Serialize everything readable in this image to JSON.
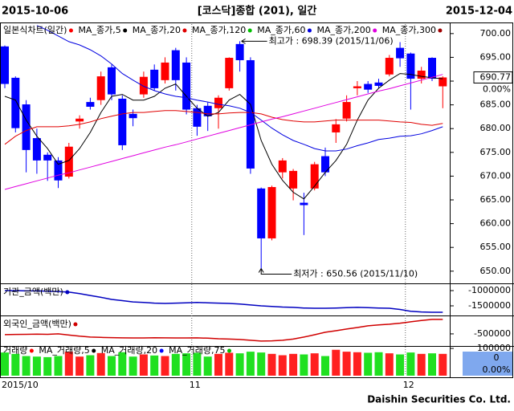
{
  "header": {
    "start": "2015-10-06",
    "title": "[코스닥]종합 (201), 일간",
    "end": "2015-12-04"
  },
  "footer": "Daishin Securities Co. Ltd.",
  "chart_data": [
    {
      "type": "candlestick",
      "name": "일본식차트(일간)",
      "up_color": "#ff0000",
      "down_color": "#0000ff",
      "categories": [
        "2015/10",
        null,
        null,
        null,
        null,
        null,
        null,
        null,
        null,
        null,
        null,
        null,
        null,
        null,
        null,
        null,
        null,
        null,
        "11",
        null,
        null,
        null,
        null,
        null,
        null,
        null,
        null,
        null,
        null,
        null,
        null,
        null,
        null,
        null,
        null,
        null,
        null,
        null,
        "12",
        null,
        null,
        null
      ],
      "open": [
        697.3,
        690.7,
        685.1,
        678.0,
        674.5,
        673.3,
        669.9,
        681.5,
        685.6,
        686.0,
        692.9,
        686.3,
        683.1,
        687.2,
        692.4,
        690.2,
        696.5,
        693.9,
        684.3,
        684.8,
        684.3,
        688.5,
        697.8,
        694.4,
        667.4,
        656.9,
        670.8,
        667.4,
        664.4,
        667.4,
        674.2,
        679.2,
        682.1,
        688.5,
        689.4,
        689.7,
        691.4,
        697.0,
        695.8,
        690.5,
        694.9,
        688.9
      ],
      "high": [
        697.5,
        691.0,
        686.0,
        680.0,
        675.0,
        674.0,
        677.0,
        682.8,
        686.5,
        692.0,
        693.5,
        687.0,
        684.0,
        692.0,
        693.5,
        695.0,
        697.0,
        695.0,
        685.0,
        685.5,
        687.0,
        695.0,
        698.39,
        695.0,
        667.6,
        668.0,
        673.8,
        671.5,
        666.5,
        673.0,
        676.0,
        682.0,
        687.0,
        690.0,
        690.0,
        690.5,
        695.5,
        698.2,
        696.0,
        693.0,
        695.0,
        691.0
      ],
      "low": [
        688.5,
        679.2,
        670.8,
        670.5,
        669.0,
        667.5,
        669.5,
        680.0,
        684.0,
        685.0,
        686.0,
        675.5,
        680.5,
        686.5,
        688.0,
        689.5,
        688.0,
        683.0,
        678.5,
        679.5,
        680.0,
        688.0,
        692.0,
        670.5,
        650.56,
        656.5,
        669.5,
        664.9,
        657.6,
        667.0,
        670.0,
        677.0,
        681.5,
        687.0,
        687.5,
        688.5,
        691.0,
        693.0,
        684.0,
        689.5,
        690.0,
        684.3
      ],
      "close": [
        689.4,
        680.1,
        675.5,
        673.3,
        673.3,
        669.1,
        676.2,
        682.1,
        684.6,
        691.0,
        687.2,
        676.5,
        682.2,
        690.9,
        688.5,
        693.9,
        690.2,
        684.0,
        680.4,
        682.6,
        686.5,
        694.9,
        694.4,
        671.6,
        656.9,
        667.7,
        673.3,
        671.1,
        663.9,
        672.5,
        670.8,
        680.9,
        685.6,
        688.9,
        688.2,
        689.0,
        694.9,
        694.8,
        690.5,
        692.2,
        690.5,
        690.77
      ],
      "series": [
        {
          "name": "MA_종가,5",
          "color": "#000000",
          "values": [
            686.8,
            686.0,
            681.8,
            678.4,
            675.8,
            672.5,
            673.3,
            675.8,
            679.2,
            683.4,
            686.8,
            687.2,
            686.0,
            686.0,
            686.8,
            688.5,
            689.4,
            686.8,
            684.3,
            682.6,
            683.4,
            686.0,
            687.2,
            685.1,
            677.5,
            672.5,
            669.1,
            666.6,
            665.2,
            667.9,
            670.8,
            673.3,
            676.7,
            681.8,
            686.0,
            688.5,
            690.2,
            691.6,
            691.4,
            691.0,
            690.7,
            690.5
          ]
        },
        {
          "name": "MA_종가,20",
          "color": "#e00000",
          "values": [
            676.7,
            678.4,
            679.6,
            680.4,
            680.4,
            680.4,
            680.6,
            680.9,
            681.4,
            682.1,
            682.6,
            683.1,
            683.4,
            683.4,
            683.6,
            683.8,
            683.8,
            683.6,
            683.4,
            683.1,
            683.1,
            683.3,
            683.4,
            683.4,
            683.1,
            682.4,
            681.9,
            681.6,
            681.4,
            681.4,
            681.6,
            681.8,
            681.8,
            681.8,
            681.8,
            681.8,
            681.6,
            681.4,
            681.3,
            680.9,
            680.7,
            681.1
          ]
        },
        {
          "name": "MA_종가,120",
          "color": "#00c000",
          "values": [
            null,
            null,
            null,
            null,
            null,
            null,
            null,
            null,
            null,
            null,
            null,
            null,
            null,
            null,
            null,
            null,
            null,
            null,
            null,
            null,
            null,
            null,
            null,
            null,
            null,
            null,
            null,
            null,
            null,
            null,
            null,
            null,
            null,
            null,
            null,
            null,
            null,
            null,
            null,
            null,
            null,
            null
          ]
        },
        {
          "name": "MA_종가,60",
          "color": "#0000e0",
          "values": [
            null,
            null,
            null,
            701.7,
            700.7,
            699.5,
            698.3,
            697.6,
            696.6,
            695.3,
            693.6,
            691.6,
            690.2,
            688.9,
            688.0,
            687.3,
            686.8,
            686.5,
            686.0,
            685.6,
            685.1,
            684.8,
            684.3,
            683.4,
            681.8,
            680.1,
            678.7,
            677.5,
            676.7,
            675.8,
            675.3,
            675.3,
            675.7,
            676.4,
            677.0,
            677.7,
            678.0,
            678.4,
            678.5,
            678.9,
            679.6,
            680.4
          ]
        },
        {
          "name": "MA_종가,200",
          "color": "#e000e0",
          "values": [
            667.2,
            667.8,
            668.4,
            669.0,
            669.6,
            670.2,
            670.7,
            671.3,
            671.9,
            672.5,
            673.1,
            673.7,
            674.3,
            674.9,
            675.5,
            676.1,
            676.6,
            677.2,
            677.8,
            678.4,
            679.0,
            679.6,
            680.2,
            680.8,
            681.4,
            682.0,
            682.5,
            683.1,
            683.7,
            684.3,
            684.9,
            685.5,
            686.1,
            686.7,
            687.3,
            687.9,
            688.4,
            689.0,
            689.6,
            690.2,
            690.8,
            691.4
          ]
        },
        {
          "name": "MA_종가,300",
          "color": "#a00000",
          "values": [
            null,
            null,
            null,
            null,
            null,
            null,
            null,
            null,
            null,
            null,
            null,
            null,
            null,
            null,
            null,
            null,
            null,
            null,
            null,
            null,
            null,
            null,
            null,
            null,
            null,
            null,
            null,
            null,
            null,
            null,
            null,
            null,
            null,
            null,
            null,
            null,
            null,
            null,
            null,
            null,
            null,
            null
          ]
        }
      ],
      "ylim": [
        647.6,
        702
      ],
      "yticks": [
        {
          "value": 650,
          "label": "650.00"
        },
        {
          "value": 655,
          "label": "655.00"
        },
        {
          "value": 660,
          "label": "660.00"
        },
        {
          "value": 665,
          "label": "665.00"
        },
        {
          "value": 670,
          "label": "670.00"
        },
        {
          "value": 675,
          "label": "675.00"
        },
        {
          "value": 680,
          "label": "680.00"
        },
        {
          "value": 685,
          "label": "685.00"
        },
        {
          "value": 690,
          "label": "690.00"
        },
        {
          "value": 695,
          "label": "695.00"
        },
        {
          "value": 700,
          "label": "700.00"
        }
      ],
      "change_label": "0.00%",
      "annotations": [
        {
          "label": "최고가 : 698.39 (2015/11/06)",
          "value": 698.39,
          "color": "#ff0000"
        },
        {
          "label": "최저가 : 650.56 (2015/11/10)",
          "value": 650.56,
          "color": "#0000ff"
        }
      ]
    },
    {
      "type": "line",
      "series": [
        {
          "name": "기관_금액(백만)",
          "color": "#0000c0",
          "values": [
            -1000000,
            -1000000,
            -1010000,
            -1010000,
            -1020000,
            -1030000,
            -1050000,
            -1100000,
            -1160000,
            -1220000,
            -1290000,
            -1330000,
            -1370000,
            -1390000,
            -1410000,
            -1420000,
            -1410000,
            -1400000,
            -1390000,
            -1400000,
            -1410000,
            -1420000,
            -1440000,
            -1470000,
            -1500000,
            -1520000,
            -1540000,
            -1550000,
            -1570000,
            -1580000,
            -1580000,
            -1570000,
            -1560000,
            -1550000,
            -1560000,
            -1570000,
            -1580000,
            -1620000,
            -1680000,
            -1700000,
            -1710000,
            -1710000
          ]
        }
      ],
      "ylim": [
        -1790000,
        -815000
      ],
      "yticks": [
        -1000000,
        -1500000
      ]
    },
    {
      "type": "line",
      "series": [
        {
          "name": "외국인_금액(백만)",
          "color": "#d00000",
          "values": [
            -528000,
            -520000,
            -515000,
            -510000,
            -515000,
            -500000,
            -540000,
            -580000,
            -611000,
            -620000,
            -630000,
            -639000,
            -640000,
            -640000,
            -635000,
            -639000,
            -640000,
            -640000,
            -639000,
            -650000,
            -667000,
            -680000,
            -694000,
            -720000,
            -750000,
            -740000,
            -722000,
            -680000,
            -611000,
            -530000,
            -444000,
            -390000,
            -333000,
            -280000,
            -222000,
            -190000,
            -167000,
            -130000,
            -83000,
            -40000,
            0,
            0
          ]
        }
      ],
      "ylim": [
        -890000,
        80000
      ],
      "yticks": [
        -500000
      ]
    },
    {
      "type": "bar",
      "up_color": "#ff2020",
      "down_color": "#20e020",
      "values": [
        85000,
        80000,
        72000,
        70000,
        68000,
        72000,
        88000,
        70000,
        75000,
        83000,
        72000,
        86000,
        70000,
        78000,
        74000,
        72000,
        80000,
        82000,
        84000,
        70000,
        80000,
        84000,
        82000,
        88000,
        85000,
        80000,
        75000,
        80000,
        78000,
        82000,
        72000,
        95000,
        88000,
        86000,
        84000,
        86000,
        82000,
        78000,
        85000,
        80000,
        82000,
        80000
      ],
      "legend": [
        {
          "name": "거래량",
          "color": "#ff0000"
        },
        {
          "name": "MA_거래량,5",
          "color": "#000000"
        },
        {
          "name": "MA_거래량,20",
          "color": "#0000ff"
        },
        {
          "name": "MA_거래량,75",
          "color": "#00c000"
        }
      ],
      "ylim": [
        0,
        106000
      ],
      "yticks": [
        100000
      ],
      "current_value": 0,
      "change_label": "0.00%"
    }
  ]
}
